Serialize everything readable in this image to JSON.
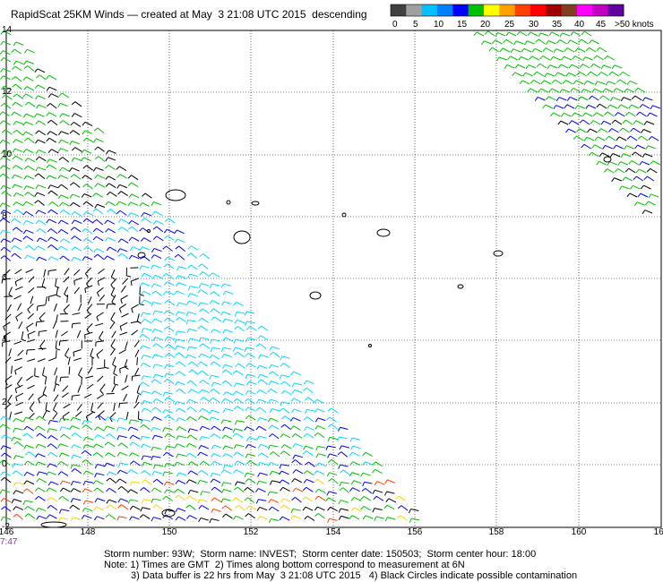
{
  "header": {
    "title": "RapidScat 25KM Winds — created at May  3 21:08 UTC 2015  descending"
  },
  "legend": {
    "tick_labels": [
      "0",
      "5",
      "10",
      "15",
      "20",
      "25",
      "30",
      "35",
      "40",
      "45",
      ">50 knots"
    ],
    "colors": [
      "#404040",
      "#a0a0a0",
      "#00c0ff",
      "#0080ff",
      "#0000ff",
      "#00c000",
      "#ffff00",
      "#ffa000",
      "#ff4000",
      "#ff0000",
      "#a00000",
      "#804020",
      "#ff00ff",
      "#c000c0",
      "#6000a0"
    ]
  },
  "axes": {
    "lon_labels": [
      "146",
      "148",
      "150",
      "152",
      "154",
      "156",
      "158",
      "160",
      "162"
    ],
    "lat_labels": [
      "14",
      "12",
      "10",
      "8",
      "6",
      "4",
      "2",
      "0",
      "-2"
    ],
    "time_label": "7:47"
  },
  "footer": {
    "line1": "Storm number: 93W;  Storm name: INVEST;  Storm center date: 150503;  Storm center hour: 18:00",
    "line2": "Note: 1) Times are GMT  2) Times along bottom correspond to measurement at 6N",
    "line3": "3) Data buffer is 22 hrs from May  3 21:08 UTC 2015   4) Black Circles indicate possible contamination"
  },
  "colors": {
    "calm": "#000000",
    "light": "#00d8ff",
    "moderate": "#0000ff",
    "fresh": "#00c000",
    "strong": "#ffd000",
    "gale": "#ff4000"
  }
}
